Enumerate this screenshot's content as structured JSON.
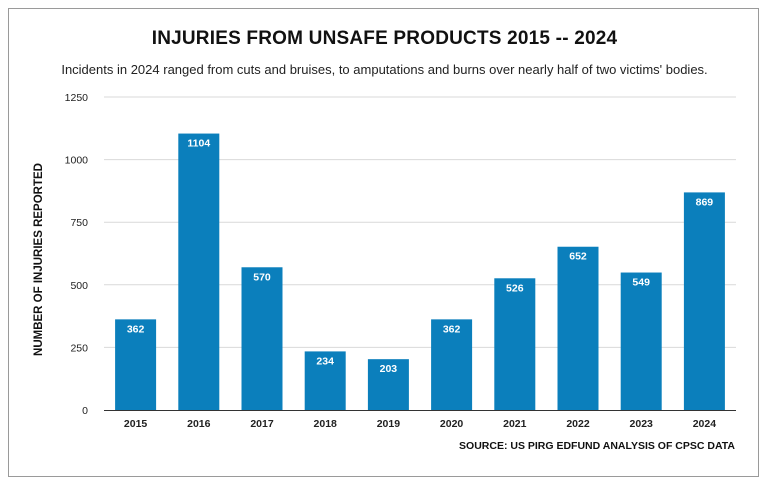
{
  "chart_data": {
    "type": "bar",
    "title": "INJURIES FROM UNSAFE PRODUCTS 2015 -- 2024",
    "subtitle": "Incidents in 2024 ranged from cuts and bruises, to amputations and burns over nearly half of two victims' bodies.",
    "xlabel": "",
    "ylabel": "NUMBER OF INJURIES REPORTED",
    "categories": [
      "2015",
      "2016",
      "2017",
      "2018",
      "2019",
      "2020",
      "2021",
      "2022",
      "2023",
      "2024"
    ],
    "values": [
      362,
      1104,
      570,
      234,
      203,
      362,
      526,
      652,
      549,
      869
    ],
    "ylim": [
      0,
      1250
    ],
    "yticks": [
      0,
      250,
      500,
      750,
      1000,
      1250
    ],
    "grid": true,
    "legend": "none",
    "bar_color": "#0b7fbc",
    "data_labels": true,
    "source": "SOURCE: US PIRG EDFUND ANALYSIS OF CPSC DATA"
  }
}
